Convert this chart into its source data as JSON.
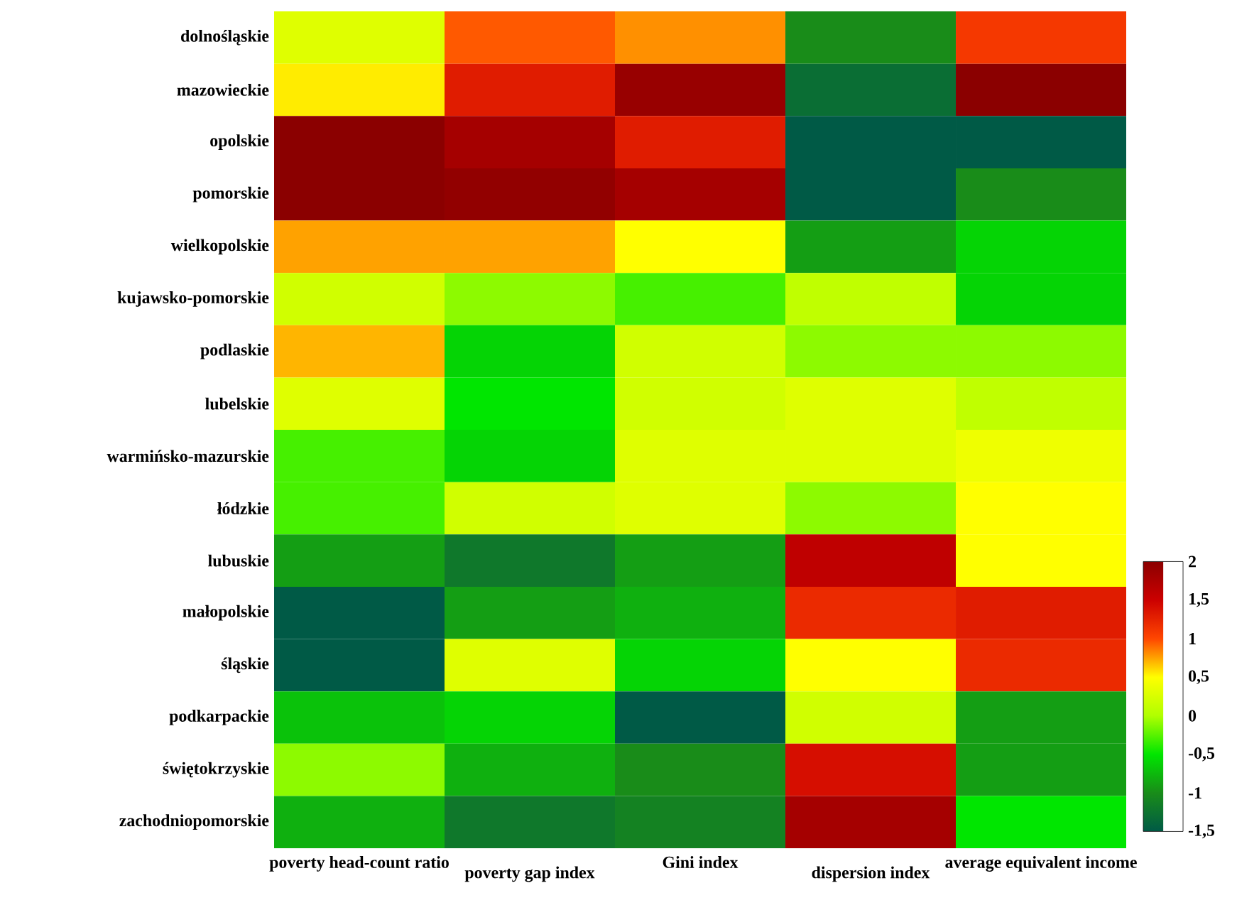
{
  "chart_data": {
    "type": "heatmap",
    "categories": [
      "poverty head-count ratio",
      "poverty gap index",
      "Gini index",
      "dispersion index",
      "average equivalent income"
    ],
    "y_categories": [
      "dolnośląskie",
      "mazowieckie",
      "opolskie",
      "pomorskie",
      "wielkopolskie",
      "kujawsko-pomorskie",
      "podlaskie",
      "lubelskie",
      "warmińsko-mazurskie",
      "łódzkie",
      "lubuskie",
      "małopolskie",
      "śląskie",
      "podkarpackie",
      "świętokrzyskie",
      "zachodniopomorskie"
    ],
    "cells": [
      [
        0.3,
        0.95,
        0.8,
        -1,
        1.1
      ],
      [
        0.55,
        1.3,
        1.9,
        -1.3,
        2
      ],
      [
        2,
        1.8,
        1.3,
        -1.5,
        -1.5
      ],
      [
        2,
        1.95,
        1.8,
        -1.5,
        -1
      ],
      [
        0.75,
        0.75,
        0.5,
        -0.9,
        -0.6
      ],
      [
        0.2,
        -0.1,
        -0.3,
        0.1,
        -0.6
      ],
      [
        0.7,
        -0.6,
        0.2,
        -0.1,
        -0.1
      ],
      [
        0.3,
        -0.5,
        0.2,
        0.3,
        0.1
      ],
      [
        -0.3,
        -0.6,
        0.3,
        0.3,
        0.4
      ],
      [
        -0.3,
        0.2,
        0.3,
        -0.1,
        0.5
      ],
      [
        -0.9,
        -1.2,
        -0.9,
        1.6,
        0.5
      ],
      [
        -1.5,
        -0.9,
        -0.8,
        1.2,
        1.3
      ],
      [
        -1.5,
        0.3,
        -0.6,
        0.5,
        1.2
      ],
      [
        -0.7,
        -0.6,
        -1.5,
        0.2,
        -0.9
      ],
      [
        -0.1,
        -0.8,
        -1,
        1.4,
        -0.9
      ],
      [
        -0.8,
        -1.2,
        -1.1,
        1.8,
        -0.5
      ]
    ],
    "clim": [
      -1.5,
      2
    ],
    "cticks": [
      {
        "value": 2,
        "label": "2"
      },
      {
        "value": 1.5,
        "label": "1,5"
      },
      {
        "value": 1,
        "label": "1"
      },
      {
        "value": 0.5,
        "label": "0,5"
      },
      {
        "value": 0,
        "label": "0"
      },
      {
        "value": -0.5,
        "label": "-0,5"
      },
      {
        "value": -1,
        "label": "-1"
      },
      {
        "value": -1.5,
        "label": "-1,5"
      }
    ]
  }
}
